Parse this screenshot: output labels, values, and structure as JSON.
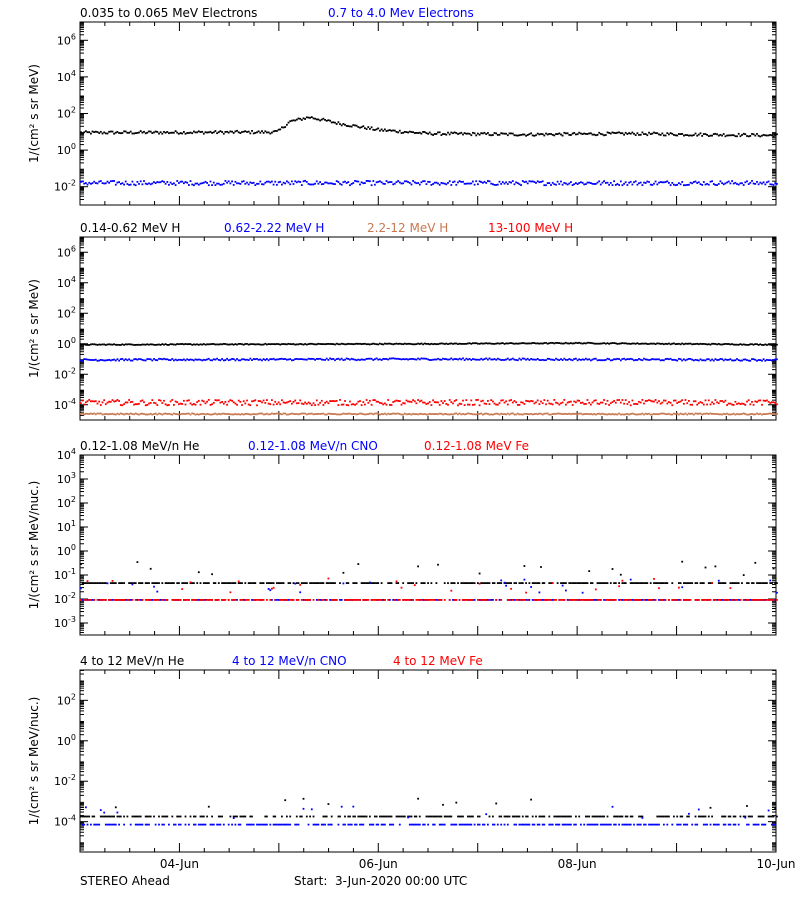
{
  "footer": {
    "left": "STEREO Ahead",
    "start": "Start:  3-Jun-2020 00:00 UTC"
  },
  "x_axis": {
    "unit": "days since 3-Jun-2020 00:00 UTC",
    "range": [
      0,
      7
    ],
    "ticks": [
      {
        "value": 1,
        "label": "04-Jun"
      },
      {
        "value": 3,
        "label": "06-Jun"
      },
      {
        "value": 5,
        "label": "08-Jun"
      },
      {
        "value": 7,
        "label": "10-Jun"
      }
    ],
    "minor_step": 0.25
  },
  "chart_data": [
    {
      "type": "scatter",
      "ylabel": "1/(cm² s sr MeV)",
      "yscale": "log",
      "ylim_exp": [
        -3,
        7
      ],
      "y_ticks_exp": [
        -2,
        0,
        2,
        4,
        6
      ],
      "legend": [
        {
          "label": "0.035 to 0.065 MeV Electrons",
          "color": "#000000"
        },
        {
          "label": "0.7 to 4.0 Mev Electrons",
          "color": "#0000ff"
        }
      ],
      "series": [
        {
          "name": "0.035 to 0.065 MeV Electrons",
          "color": "#000000",
          "profile": [
            [
              0,
              1.0
            ],
            [
              1.9,
              1.03
            ],
            [
              1.98,
              1.05
            ],
            [
              2.1,
              1.6
            ],
            [
              2.3,
              1.85
            ],
            [
              2.6,
              1.5
            ],
            [
              3.0,
              1.15
            ],
            [
              3.5,
              0.95
            ],
            [
              4.5,
              0.9
            ],
            [
              5.5,
              0.95
            ],
            [
              6.2,
              0.9
            ],
            [
              7,
              0.85
            ]
          ],
          "scatter": 0.08
        },
        {
          "name": "0.7 to 4.0 Mev Electrons",
          "color": "#0000ff",
          "profile": [
            [
              0,
              -1.75
            ],
            [
              7,
              -1.75
            ]
          ],
          "scatter": 0.12
        }
      ]
    },
    {
      "type": "scatter",
      "ylabel": "1/(cm² s sr MeV)",
      "yscale": "log",
      "ylim_exp": [
        -5,
        7
      ],
      "y_ticks_exp": [
        -4,
        -2,
        0,
        2,
        4,
        6
      ],
      "legend": [
        {
          "label": "0.14-0.62 MeV H",
          "color": "#000000"
        },
        {
          "label": "0.62-2.22 MeV H",
          "color": "#0000ff"
        },
        {
          "label": "2.2-12 MeV H",
          "color": "#c87850"
        },
        {
          "label": "13-100 MeV H",
          "color": "#ff0000"
        }
      ],
      "series": [
        {
          "name": "0.14-0.62 MeV H",
          "color": "#000000",
          "profile": [
            [
              0,
              0.0
            ],
            [
              3.4,
              0.05
            ],
            [
              5.0,
              0.1
            ],
            [
              7,
              0.0
            ]
          ],
          "scatter": 0.03
        },
        {
          "name": "0.62-2.22 MeV H",
          "color": "#0000ff",
          "profile": [
            [
              0,
              -1.0
            ],
            [
              3.5,
              -0.95
            ],
            [
              7,
              -1.0
            ]
          ],
          "scatter": 0.06
        },
        {
          "name": "2.2-12 MeV H",
          "color": "#c87850",
          "profile": [
            [
              0,
              -4.55
            ],
            [
              7,
              -4.55
            ]
          ],
          "scatter": 0.04
        },
        {
          "name": "13-100 MeV H",
          "color": "#ff0000",
          "profile": [
            [
              0,
              -3.8
            ],
            [
              7,
              -3.8
            ]
          ],
          "scatter": 0.18
        }
      ]
    },
    {
      "type": "scatter",
      "ylabel": "1/(cm² s sr MeV/nuc.)",
      "yscale": "log",
      "ylim_exp": [
        -3.5,
        4
      ],
      "y_ticks_exp": [
        -3,
        -2,
        -1,
        0,
        1,
        2,
        3,
        4
      ],
      "legend": [
        {
          "label": "0.12-1.08 MeV/n He",
          "color": "#000000"
        },
        {
          "label": "0.12-1.08 MeV/n CNO",
          "color": "#0000ff"
        },
        {
          "label": "0.12-1.08 MeV Fe",
          "color": "#ff0000"
        }
      ],
      "series": [
        {
          "name": "0.12-1.08 MeV/n He",
          "color": "#000000",
          "profile": [
            [
              0,
              -1.3
            ],
            [
              7,
              -1.3
            ]
          ],
          "scatter": 0.0
        },
        {
          "name": "0.12-1.08 MeV/n CNO",
          "color": "#0000ff",
          "profile": [
            [
              0,
              -2.0
            ],
            [
              7,
              -2.0
            ]
          ],
          "scatter": 0.0
        },
        {
          "name": "0.12-1.08 MeV Fe",
          "color": "#ff0000",
          "profile": [
            [
              0,
              -2.0
            ],
            [
              7,
              -2.0
            ]
          ],
          "scatter": 0.0
        }
      ]
    },
    {
      "type": "scatter",
      "ylabel": "1/(cm² s sr MeV/nuc.)",
      "yscale": "log",
      "ylim_exp": [
        -5.5,
        3.5
      ],
      "y_ticks_exp": [
        -4,
        -2,
        0,
        2
      ],
      "legend": [
        {
          "label": "4 to 12 MeV/n He",
          "color": "#000000"
        },
        {
          "label": "4 to 12 MeV/n CNO",
          "color": "#0000ff"
        },
        {
          "label": "4 to 12 MeV Fe",
          "color": "#ff0000"
        }
      ],
      "series": [
        {
          "name": "4 to 12 MeV/n He",
          "color": "#000000",
          "profile": [
            [
              0,
              -3.7
            ],
            [
              7,
              -3.7
            ]
          ],
          "scatter": 0.0
        },
        {
          "name": "4 to 12 MeV/n CNO",
          "color": "#0000ff",
          "profile": [
            [
              0,
              -4.1
            ],
            [
              7,
              -4.1
            ]
          ],
          "scatter": 0.0
        }
      ]
    }
  ]
}
